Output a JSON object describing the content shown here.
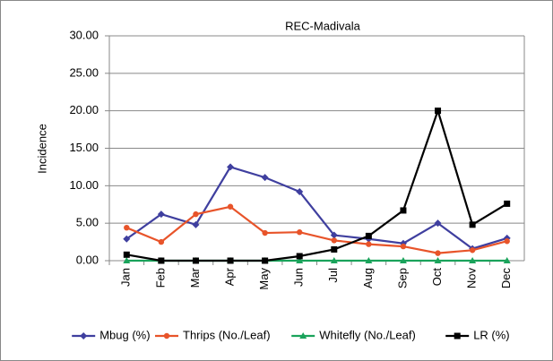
{
  "chart_data": {
    "type": "line",
    "title": "REC-Madivala",
    "y_label": "Incidence",
    "categories": [
      "Jan",
      "Feb",
      "Mar",
      "Apr",
      "May",
      "Jun",
      "Jul",
      "Aug",
      "Sep",
      "Oct",
      "Nov",
      "Dec"
    ],
    "series": [
      {
        "name": "Mbug (%)",
        "color": "#3f3f9f",
        "marker": "diamond",
        "values": [
          2.9,
          6.2,
          4.8,
          12.5,
          11.1,
          9.2,
          3.4,
          2.9,
          2.3,
          5.0,
          1.6,
          3.0
        ]
      },
      {
        "name": "Thrips (No./Leaf)",
        "color": "#e8542a",
        "marker": "circle",
        "values": [
          4.4,
          2.5,
          6.2,
          7.2,
          3.7,
          3.8,
          2.7,
          2.2,
          1.9,
          1.0,
          1.4,
          2.6
        ]
      },
      {
        "name": "Whitefly  (No./Leaf)",
        "color": "#1aa35b",
        "marker": "triangle",
        "values": [
          0,
          0,
          0,
          0,
          0,
          0,
          0,
          0,
          0,
          0,
          0,
          0
        ]
      },
      {
        "name": "LR (%)",
        "color": "#000000",
        "marker": "square",
        "values": [
          0.8,
          0,
          0,
          0,
          0,
          0.6,
          1.5,
          3.3,
          6.7,
          20.0,
          4.8,
          7.6
        ]
      }
    ],
    "ylim": [
      0,
      30
    ],
    "yticks": [
      {
        "value": 0,
        "label": "0.00"
      },
      {
        "value": 5,
        "label": "5.00"
      },
      {
        "value": 10,
        "label": "10.00"
      },
      {
        "value": 15,
        "label": "15.00"
      },
      {
        "value": 20,
        "label": "20.00"
      },
      {
        "value": 25,
        "label": "25.00"
      },
      {
        "value": 30,
        "label": "30.00"
      }
    ],
    "grid": true,
    "legend": "bottom"
  }
}
